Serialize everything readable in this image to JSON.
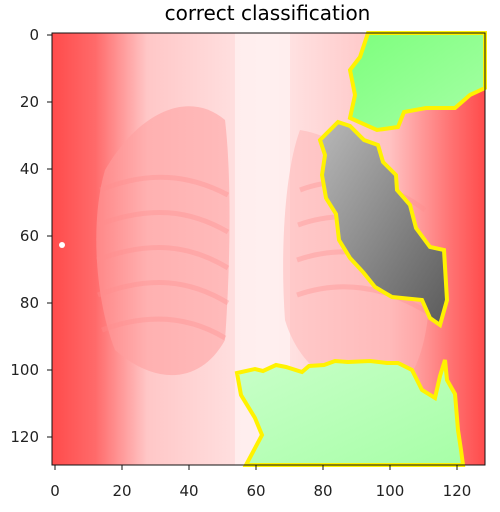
{
  "figure": {
    "title": "correct classification",
    "x_ticks": [
      "0",
      "20",
      "40",
      "60",
      "80",
      "100",
      "120"
    ],
    "y_ticks": [
      "0",
      "20",
      "40",
      "60",
      "80",
      "100",
      "120"
    ],
    "image": {
      "description_type": "chest x-ray explanation overlay",
      "overlay_colors": {
        "positive": "#7CFF7C",
        "negative": "#FF6B6B",
        "neutral": "#7A7A7A",
        "boundary": "#FFF200"
      }
    }
  }
}
